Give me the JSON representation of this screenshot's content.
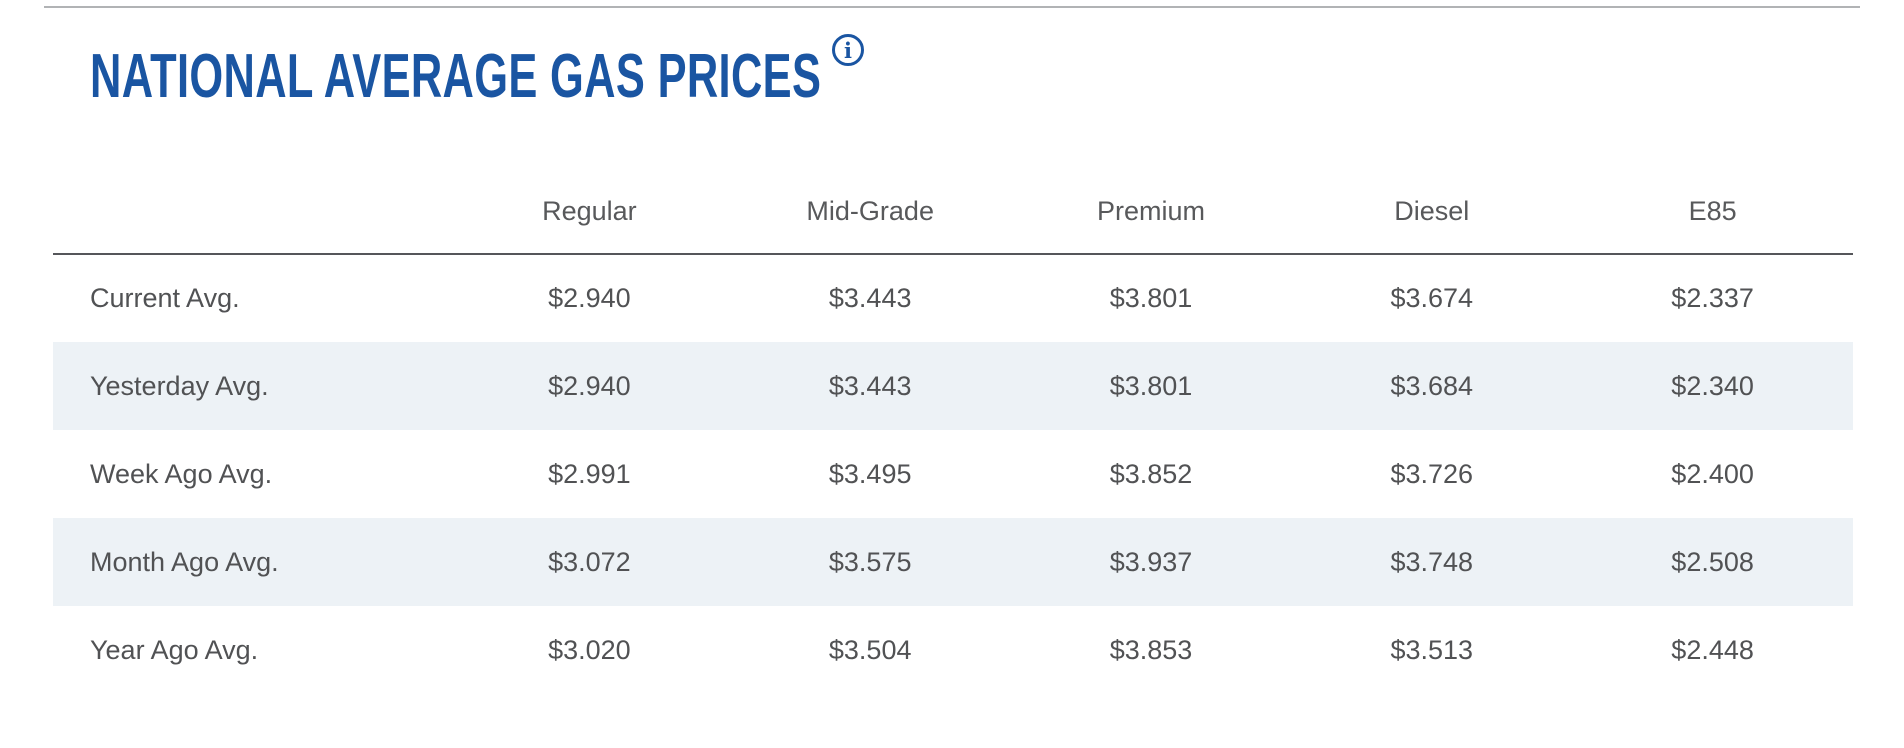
{
  "page": {
    "title": "NATIONAL AVERAGE GAS PRICES"
  },
  "colors": {
    "title_blue": "#1a55a2",
    "text_gray": "#515254",
    "header_gray": "#58595b",
    "row_stripe": "#edf2f6",
    "top_rule": "#b1b3b5",
    "header_rule": "#55565a"
  },
  "icons": {
    "info": "i"
  },
  "table": {
    "columns": [
      "Regular",
      "Mid-Grade",
      "Premium",
      "Diesel",
      "E85"
    ],
    "rows": [
      {
        "label": "Current Avg.",
        "values": [
          "$2.940",
          "$3.443",
          "$3.801",
          "$3.674",
          "$2.337"
        ]
      },
      {
        "label": "Yesterday Avg.",
        "values": [
          "$2.940",
          "$3.443",
          "$3.801",
          "$3.684",
          "$2.340"
        ]
      },
      {
        "label": "Week Ago Avg.",
        "values": [
          "$2.991",
          "$3.495",
          "$3.852",
          "$3.726",
          "$2.400"
        ]
      },
      {
        "label": "Month Ago Avg.",
        "values": [
          "$3.072",
          "$3.575",
          "$3.937",
          "$3.748",
          "$2.508"
        ]
      },
      {
        "label": "Year Ago Avg.",
        "values": [
          "$3.020",
          "$3.504",
          "$3.853",
          "$3.513",
          "$2.448"
        ]
      }
    ]
  },
  "chart_data": {
    "type": "table",
    "title": "NATIONAL AVERAGE GAS PRICES",
    "categories": [
      "Regular",
      "Mid-Grade",
      "Premium",
      "Diesel",
      "E85"
    ],
    "series": [
      {
        "name": "Current Avg.",
        "values": [
          2.94,
          3.443,
          3.801,
          3.674,
          2.337
        ]
      },
      {
        "name": "Yesterday Avg.",
        "values": [
          2.94,
          3.443,
          3.801,
          3.684,
          2.34
        ]
      },
      {
        "name": "Week Ago Avg.",
        "values": [
          2.991,
          3.495,
          3.852,
          3.726,
          2.4
        ]
      },
      {
        "name": "Month Ago Avg.",
        "values": [
          3.072,
          3.575,
          3.937,
          3.748,
          2.508
        ]
      },
      {
        "name": "Year Ago Avg.",
        "values": [
          3.02,
          3.504,
          3.853,
          3.513,
          2.448
        ]
      }
    ]
  }
}
